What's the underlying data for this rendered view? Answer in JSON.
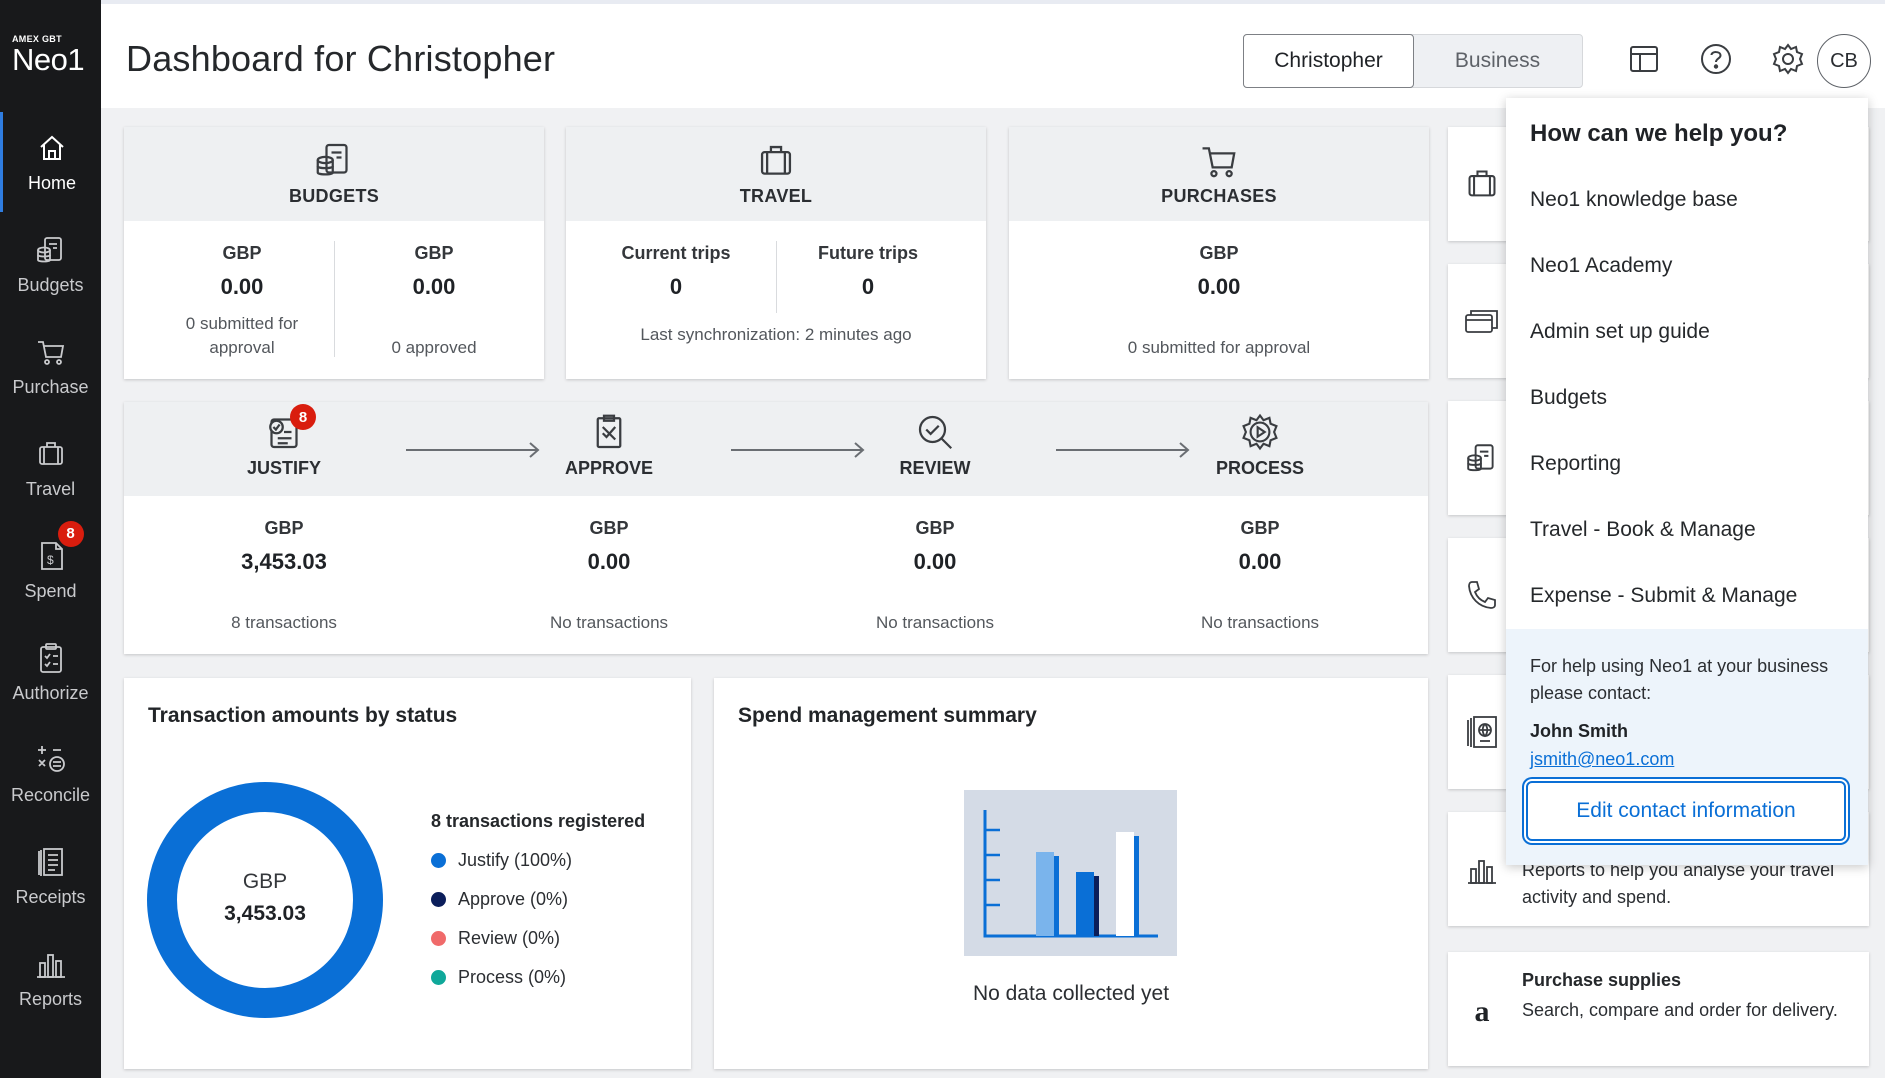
{
  "logo": {
    "top": "AMEX GBT",
    "main": "Neo1"
  },
  "sidebar": {
    "items": [
      {
        "label": "Home"
      },
      {
        "label": "Budgets"
      },
      {
        "label": "Purchase"
      },
      {
        "label": "Travel"
      },
      {
        "label": "Spend",
        "badge": "8"
      },
      {
        "label": "Authorize"
      },
      {
        "label": "Reconcile"
      },
      {
        "label": "Receipts"
      },
      {
        "label": "Reports"
      }
    ]
  },
  "header": {
    "title": "Dashboard for Christopher",
    "toggle": {
      "selected": "Christopher",
      "other": "Business"
    },
    "avatar": "CB"
  },
  "summary": {
    "budgets": {
      "title": "BUDGETS",
      "left": {
        "currency": "GBP",
        "amount": "0.00",
        "note": "0 submitted for approval"
      },
      "right": {
        "currency": "GBP",
        "amount": "0.00",
        "note": "0 approved"
      }
    },
    "travel": {
      "title": "TRAVEL",
      "left": {
        "label": "Current trips",
        "value": "0"
      },
      "right": {
        "label": "Future trips",
        "value": "0"
      },
      "note": "Last synchronization: 2 minutes ago"
    },
    "purchases": {
      "title": "PURCHASES",
      "currency": "GBP",
      "amount": "0.00",
      "note": "0 submitted for approval"
    }
  },
  "workflow": [
    {
      "title": "JUSTIFY",
      "badge": "8",
      "currency": "GBP",
      "amount": "3,453.03",
      "note": "8 transactions"
    },
    {
      "title": "APPROVE",
      "currency": "GBP",
      "amount": "0.00",
      "note": "No transactions"
    },
    {
      "title": "REVIEW",
      "currency": "GBP",
      "amount": "0.00",
      "note": "No transactions"
    },
    {
      "title": "PROCESS",
      "currency": "GBP",
      "amount": "0.00",
      "note": "No transactions"
    }
  ],
  "transactions": {
    "title": "Transaction amounts by status",
    "center_currency": "GBP",
    "center_amount": "3,453.03",
    "registered": "8 transactions registered",
    "legend": [
      {
        "label": "Justify (100%)",
        "color": "#0a6fd6"
      },
      {
        "label": "Approve (0%)",
        "color": "#0b1e5b"
      },
      {
        "label": "Review (0%)",
        "color": "#f06a6a"
      },
      {
        "label": "Process (0%)",
        "color": "#0fa89a"
      }
    ]
  },
  "chart_data": {
    "type": "pie",
    "categories": [
      "Justify",
      "Approve",
      "Review",
      "Process"
    ],
    "values": [
      100,
      0,
      0,
      0
    ],
    "title": "Transaction amounts by status"
  },
  "spend_summary": {
    "title": "Spend management summary",
    "empty": "No data collected yet"
  },
  "right_cards": {
    "reports_text": "Reports to help you analyse your travel activity and spend.",
    "supplies_title": "Purchase supplies",
    "supplies_text": "Search, compare and order for delivery."
  },
  "help": {
    "title": "How can we help you?",
    "links": [
      "Neo1 knowledge base",
      "Neo1 Academy",
      "Admin set up guide",
      "Budgets",
      "Reporting",
      "Travel - Book & Manage",
      "Expense - Submit & Manage"
    ],
    "contact_intro": "For help using Neo1 at your business please contact:",
    "contact_name": "John Smith",
    "contact_email": "jsmith@neo1.com",
    "edit_button": "Edit contact information"
  },
  "colors": {
    "accent": "#0a6fd6",
    "badge": "#d91d0e",
    "sidebar": "#18191b"
  }
}
